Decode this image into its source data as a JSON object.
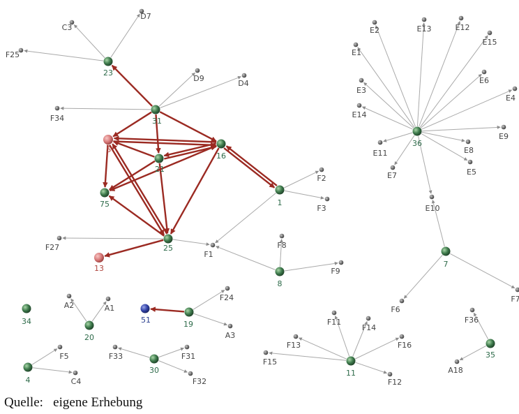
{
  "source_note": "Quelle:   eigene Erhebung",
  "colors": {
    "strong_edge": "#9b2a22",
    "weak_edge": "#a9a9a9",
    "small_node": "#707070",
    "green_node": "#3e7a4c",
    "red_node": "#d97c7c",
    "blue_node": "#3343a8"
  },
  "nodes": [
    {
      "id": "C3",
      "label": "C3",
      "kind": "small"
    },
    {
      "id": "D7",
      "label": "D7",
      "kind": "small"
    },
    {
      "id": "F25",
      "label": "F25",
      "kind": "small"
    },
    {
      "id": "23",
      "label": "23",
      "kind": "green"
    },
    {
      "id": "D9",
      "label": "D9",
      "kind": "small"
    },
    {
      "id": "D4",
      "label": "D4",
      "kind": "small"
    },
    {
      "id": "F34",
      "label": "F34",
      "kind": "small"
    },
    {
      "id": "31",
      "label": "31",
      "kind": "green"
    },
    {
      "id": "5",
      "label": "5",
      "kind": "red"
    },
    {
      "id": "21",
      "label": "21",
      "kind": "green"
    },
    {
      "id": "16",
      "label": "16",
      "kind": "green"
    },
    {
      "id": "75",
      "label": "75",
      "kind": "green"
    },
    {
      "id": "1",
      "label": "1",
      "kind": "green"
    },
    {
      "id": "F2",
      "label": "F2",
      "kind": "small"
    },
    {
      "id": "F3",
      "label": "F3",
      "kind": "small"
    },
    {
      "id": "F27",
      "label": "F27",
      "kind": "small"
    },
    {
      "id": "25",
      "label": "25",
      "kind": "green"
    },
    {
      "id": "F1",
      "label": "F1",
      "kind": "small"
    },
    {
      "id": "F8",
      "label": "F8",
      "kind": "small"
    },
    {
      "id": "13",
      "label": "13",
      "kind": "red"
    },
    {
      "id": "8",
      "label": "8",
      "kind": "green"
    },
    {
      "id": "F9",
      "label": "F9",
      "kind": "small"
    },
    {
      "id": "E2",
      "label": "E2",
      "kind": "small"
    },
    {
      "id": "E13",
      "label": "E13",
      "kind": "small"
    },
    {
      "id": "E12",
      "label": "E12",
      "kind": "small"
    },
    {
      "id": "E1",
      "label": "E1",
      "kind": "small"
    },
    {
      "id": "E15",
      "label": "E15",
      "kind": "small"
    },
    {
      "id": "E3",
      "label": "E3",
      "kind": "small"
    },
    {
      "id": "E6",
      "label": "E6",
      "kind": "small"
    },
    {
      "id": "E4",
      "label": "E4",
      "kind": "small"
    },
    {
      "id": "E14",
      "label": "E14",
      "kind": "small"
    },
    {
      "id": "E9",
      "label": "E9",
      "kind": "small"
    },
    {
      "id": "36",
      "label": "36",
      "kind": "green"
    },
    {
      "id": "E11",
      "label": "E11",
      "kind": "small"
    },
    {
      "id": "E8",
      "label": "E8",
      "kind": "small"
    },
    {
      "id": "E7",
      "label": "E7",
      "kind": "small"
    },
    {
      "id": "E5",
      "label": "E5",
      "kind": "small"
    },
    {
      "id": "E10",
      "label": "E10",
      "kind": "small"
    },
    {
      "id": "7",
      "label": "7",
      "kind": "green"
    },
    {
      "id": "F6",
      "label": "F6",
      "kind": "small"
    },
    {
      "id": "F7",
      "label": "F7",
      "kind": "small"
    },
    {
      "id": "34",
      "label": "34",
      "kind": "green"
    },
    {
      "id": "A2",
      "label": "A2",
      "kind": "small"
    },
    {
      "id": "A1",
      "label": "A1",
      "kind": "small"
    },
    {
      "id": "20",
      "label": "20",
      "kind": "green"
    },
    {
      "id": "51",
      "label": "51",
      "kind": "blue"
    },
    {
      "id": "19",
      "label": "19",
      "kind": "green"
    },
    {
      "id": "F24",
      "label": "F24",
      "kind": "small"
    },
    {
      "id": "A3",
      "label": "A3",
      "kind": "small"
    },
    {
      "id": "F11",
      "label": "F11",
      "kind": "small"
    },
    {
      "id": "F14",
      "label": "F14",
      "kind": "small"
    },
    {
      "id": "F36",
      "label": "F36",
      "kind": "small"
    },
    {
      "id": "F13",
      "label": "F13",
      "kind": "small"
    },
    {
      "id": "F16",
      "label": "F16",
      "kind": "small"
    },
    {
      "id": "F15",
      "label": "F15",
      "kind": "small"
    },
    {
      "id": "11",
      "label": "11",
      "kind": "green"
    },
    {
      "id": "F12",
      "label": "F12",
      "kind": "small"
    },
    {
      "id": "35",
      "label": "35",
      "kind": "green"
    },
    {
      "id": "A18",
      "label": "A18",
      "kind": "small"
    },
    {
      "id": "F5",
      "label": "F5",
      "kind": "small"
    },
    {
      "id": "4",
      "label": "4",
      "kind": "green"
    },
    {
      "id": "C4",
      "label": "C4",
      "kind": "small"
    },
    {
      "id": "F33",
      "label": "F33",
      "kind": "small"
    },
    {
      "id": "30",
      "label": "30",
      "kind": "green"
    },
    {
      "id": "F31",
      "label": "F31",
      "kind": "small"
    },
    {
      "id": "F32",
      "label": "F32",
      "kind": "small"
    }
  ],
  "edges": [
    {
      "from": "23",
      "to": "C3",
      "strong": false
    },
    {
      "from": "23",
      "to": "D7",
      "strong": false
    },
    {
      "from": "23",
      "to": "F25",
      "strong": false
    },
    {
      "from": "31",
      "to": "23",
      "strong": true
    },
    {
      "from": "31",
      "to": "D9",
      "strong": false
    },
    {
      "from": "31",
      "to": "D4",
      "strong": false
    },
    {
      "from": "31",
      "to": "F34",
      "strong": false
    },
    {
      "from": "31",
      "to": "5",
      "strong": true
    },
    {
      "from": "31",
      "to": "21",
      "strong": true
    },
    {
      "from": "31",
      "to": "16",
      "strong": true
    },
    {
      "from": "16",
      "to": "5",
      "strong": true
    },
    {
      "from": "5",
      "to": "16",
      "strong": true
    },
    {
      "from": "16",
      "to": "21",
      "strong": true
    },
    {
      "from": "21",
      "to": "16",
      "strong": true
    },
    {
      "from": "16",
      "to": "75",
      "strong": true
    },
    {
      "from": "16",
      "to": "25",
      "strong": true
    },
    {
      "from": "16",
      "to": "1",
      "strong": true
    },
    {
      "from": "1",
      "to": "16",
      "strong": true
    },
    {
      "from": "21",
      "to": "5",
      "strong": true
    },
    {
      "from": "21",
      "to": "75",
      "strong": true
    },
    {
      "from": "21",
      "to": "25",
      "strong": true
    },
    {
      "from": "5",
      "to": "75",
      "strong": true
    },
    {
      "from": "5",
      "to": "25",
      "strong": true
    },
    {
      "from": "25",
      "to": "5",
      "strong": true
    },
    {
      "from": "25",
      "to": "75",
      "strong": true
    },
    {
      "from": "25",
      "to": "13",
      "strong": true
    },
    {
      "from": "25",
      "to": "F27",
      "strong": false
    },
    {
      "from": "25",
      "to": "F1",
      "strong": false
    },
    {
      "from": "1",
      "to": "F2",
      "strong": false
    },
    {
      "from": "1",
      "to": "F3",
      "strong": false
    },
    {
      "from": "1",
      "to": "F1",
      "strong": false
    },
    {
      "from": "8",
      "to": "F1",
      "strong": false
    },
    {
      "from": "8",
      "to": "F8",
      "strong": false
    },
    {
      "from": "8",
      "to": "F9",
      "strong": false
    },
    {
      "from": "36",
      "to": "E1",
      "strong": false
    },
    {
      "from": "36",
      "to": "E2",
      "strong": false
    },
    {
      "from": "36",
      "to": "E13",
      "strong": false
    },
    {
      "from": "36",
      "to": "E12",
      "strong": false
    },
    {
      "from": "36",
      "to": "E15",
      "strong": false
    },
    {
      "from": "36",
      "to": "E3",
      "strong": false
    },
    {
      "from": "36",
      "to": "E6",
      "strong": false
    },
    {
      "from": "36",
      "to": "E4",
      "strong": false
    },
    {
      "from": "36",
      "to": "E14",
      "strong": false
    },
    {
      "from": "36",
      "to": "E9",
      "strong": false
    },
    {
      "from": "36",
      "to": "E11",
      "strong": false
    },
    {
      "from": "36",
      "to": "E8",
      "strong": false
    },
    {
      "from": "36",
      "to": "E7",
      "strong": false
    },
    {
      "from": "36",
      "to": "E5",
      "strong": false
    },
    {
      "from": "36",
      "to": "E10",
      "strong": false
    },
    {
      "from": "7",
      "to": "E10",
      "strong": false
    },
    {
      "from": "7",
      "to": "F6",
      "strong": false
    },
    {
      "from": "7",
      "to": "F7",
      "strong": false
    },
    {
      "from": "20",
      "to": "A2",
      "strong": false
    },
    {
      "from": "20",
      "to": "A1",
      "strong": false
    },
    {
      "from": "19",
      "to": "51",
      "strong": true
    },
    {
      "from": "19",
      "to": "F24",
      "strong": false
    },
    {
      "from": "19",
      "to": "A3",
      "strong": false
    },
    {
      "from": "11",
      "to": "F11",
      "strong": false
    },
    {
      "from": "11",
      "to": "F14",
      "strong": false
    },
    {
      "from": "11",
      "to": "F13",
      "strong": false
    },
    {
      "from": "11",
      "to": "F16",
      "strong": false
    },
    {
      "from": "11",
      "to": "F15",
      "strong": false
    },
    {
      "from": "11",
      "to": "F12",
      "strong": false
    },
    {
      "from": "35",
      "to": "F36",
      "strong": false
    },
    {
      "from": "35",
      "to": "A18",
      "strong": false
    },
    {
      "from": "4",
      "to": "F5",
      "strong": false
    },
    {
      "from": "4",
      "to": "C4",
      "strong": false
    },
    {
      "from": "30",
      "to": "F33",
      "strong": false
    },
    {
      "from": "30",
      "to": "F31",
      "strong": false
    },
    {
      "from": "30",
      "to": "F32",
      "strong": false
    }
  ]
}
